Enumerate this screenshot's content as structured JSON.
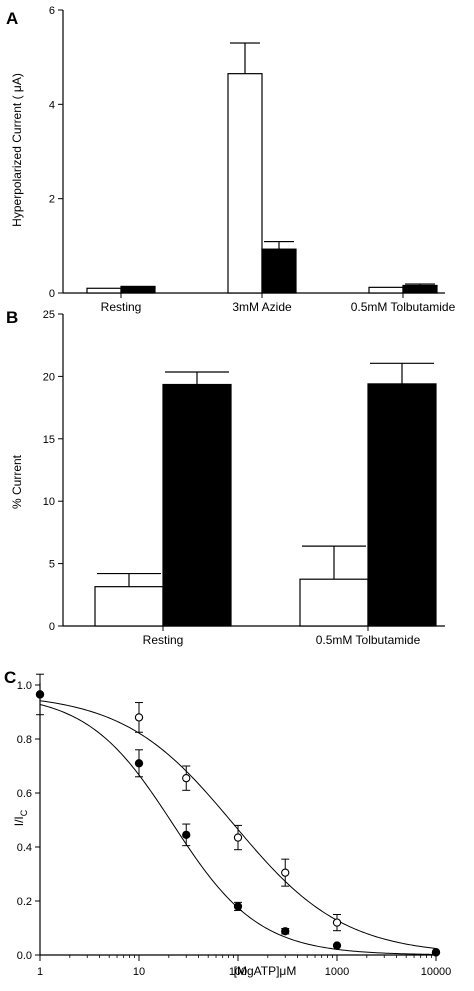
{
  "chart_data": [
    {
      "panel": "A",
      "type": "bar",
      "ylabel": "Hyperpolarized Current ( μA)",
      "ylim": [
        0,
        6
      ],
      "yticks": [
        0,
        2,
        4,
        6
      ],
      "categories": [
        "Resting",
        "3mM Azide",
        "0.5mM Tolbutamide"
      ],
      "series": [
        {
          "color": "#ffffff",
          "values": [
            0.1,
            4.65,
            0.12
          ],
          "errors": [
            0.0,
            0.65,
            0.0
          ]
        },
        {
          "color": "#000000",
          "values": [
            0.14,
            0.93,
            0.16
          ],
          "errors": [
            0.0,
            0.16,
            0.03
          ]
        }
      ]
    },
    {
      "panel": "B",
      "type": "bar",
      "ylabel": "% Current",
      "ylim": [
        0,
        25
      ],
      "yticks": [
        0,
        5,
        10,
        15,
        20,
        25
      ],
      "categories": [
        "Resting",
        "0.5mM Tolbutamide"
      ],
      "series": [
        {
          "color": "#ffffff",
          "values": [
            3.15,
            3.75
          ],
          "errors": [
            1.05,
            2.65
          ]
        },
        {
          "color": "#000000",
          "values": [
            19.35,
            19.4
          ],
          "errors": [
            1.0,
            1.65
          ]
        }
      ]
    },
    {
      "panel": "C",
      "type": "scatter",
      "ylabel_main": "I/I",
      "ylabel_sub": "C",
      "xlabel": "[MgATP]μM",
      "xscale": "log",
      "xlim": [
        1,
        10000
      ],
      "ylim": [
        0,
        1.0
      ],
      "xticks": [
        1,
        10,
        100,
        1000,
        10000
      ],
      "xtick_labels": [
        "1",
        "10",
        "100",
        "1000",
        "10000"
      ],
      "yticks": [
        0,
        0.2,
        0.4,
        0.6,
        0.8,
        1.0
      ],
      "ytick_labels": [
        "0.0",
        "0.2",
        "0.4",
        "0.6",
        "0.8",
        "1.0"
      ],
      "series": [
        {
          "marker": "open-circle",
          "x": [
            1,
            10,
            30,
            100,
            300,
            1000,
            10000
          ],
          "y": [
            0.965,
            0.88,
            0.655,
            0.435,
            0.305,
            0.12,
            0.01
          ],
          "errors": [
            0.075,
            0.055,
            0.045,
            0.045,
            0.05,
            0.03,
            0.0
          ],
          "fit": {
            "ic50": 90,
            "hill": 0.78,
            "top": 0.97
          }
        },
        {
          "marker": "filled-circle",
          "x": [
            1,
            10,
            30,
            100,
            300,
            1000,
            10000
          ],
          "y": [
            0.965,
            0.71,
            0.445,
            0.18,
            0.088,
            0.035,
            0.01
          ],
          "errors": [
            0.0,
            0.05,
            0.04,
            0.015,
            0.01,
            0.0,
            0.0
          ],
          "fit": {
            "ic50": 22,
            "hill": 1.0,
            "top": 0.97
          }
        }
      ]
    }
  ]
}
